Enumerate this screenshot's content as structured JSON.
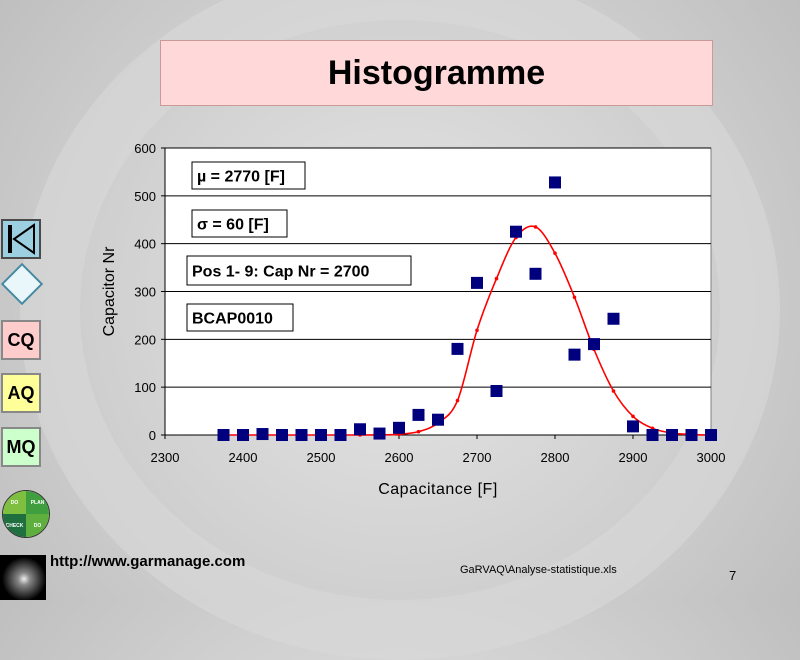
{
  "slide": {
    "title": "Histogramme",
    "url": "http://www.garmanage.com",
    "file": "GaRVAQ\\Analyse-statistique.xls",
    "page": "7"
  },
  "nav": {
    "cq": "CQ",
    "aq": "AQ",
    "mq": "MQ",
    "logo_quadrants": [
      "DO",
      "PLAN",
      "CHECK",
      "DO"
    ]
  },
  "colors": {
    "title_bg": "#ffd9d9",
    "marker": "#00007f",
    "curve": "#ff0000",
    "plot_bg": "#ffffff"
  },
  "chart_data": {
    "type": "scatter",
    "xlabel": "Capacitance [F]",
    "ylabel": "Capacitor Nr",
    "xlim": [
      2300,
      3000
    ],
    "ylim": [
      0,
      600
    ],
    "xticks": [
      2300,
      2400,
      2500,
      2600,
      2700,
      2800,
      2900,
      3000
    ],
    "yticks": [
      0,
      100,
      200,
      300,
      400,
      500,
      600
    ],
    "grid": "horizontal",
    "annotations": [
      "µ = 2770 [F]",
      "σ = 60 [F]",
      "Pos 1- 9: Cap Nr = 2700",
      "BCAP0010"
    ],
    "series": [
      {
        "marker": "square",
        "x": [
          2375,
          2400,
          2425,
          2450,
          2475,
          2500,
          2525,
          2550,
          2575,
          2600,
          2625,
          2650,
          2675,
          2700,
          2725,
          2750,
          2775,
          2800,
          2825,
          2850,
          2875,
          2900,
          2925,
          2950,
          2975,
          3000
        ],
        "y": [
          0,
          0,
          2,
          0,
          0,
          0,
          0,
          12,
          3,
          15,
          42,
          32,
          180,
          318,
          92,
          425,
          337,
          528,
          168,
          190,
          243,
          18,
          0,
          0,
          0,
          0
        ]
      },
      {
        "line": "normal-fit",
        "x": [
          2375,
          2400,
          2425,
          2450,
          2475,
          2500,
          2525,
          2550,
          2575,
          2600,
          2625,
          2650,
          2675,
          2700,
          2725,
          2750,
          2775,
          2800,
          2825,
          2850,
          2875,
          2900,
          2925,
          2950,
          2975,
          3000
        ],
        "y": [
          0,
          0,
          0,
          0,
          0,
          0,
          0,
          0,
          0.3,
          1.5,
          7,
          25,
          72,
          219,
          327,
          413,
          435,
          380,
          288,
          179,
          92,
          39,
          14,
          4,
          1,
          0
        ]
      }
    ]
  }
}
